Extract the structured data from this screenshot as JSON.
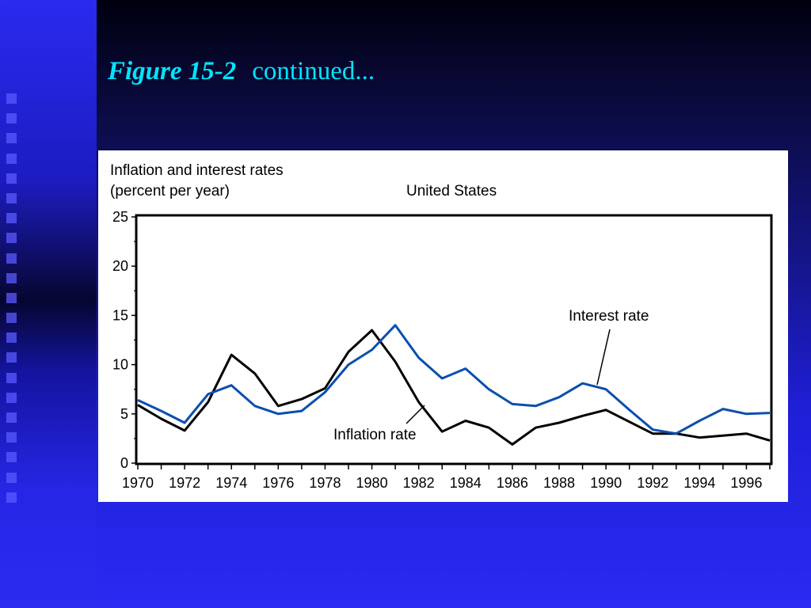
{
  "slide": {
    "title_figure": "Figure 15-2",
    "title_rest": "continued..."
  },
  "chart_data": {
    "type": "line",
    "title": "United States",
    "ylabel_line1": "Inflation and interest rates",
    "ylabel_line2": "(percent per year)",
    "ylim": [
      0,
      25
    ],
    "xlim": [
      1970,
      1997
    ],
    "yticks": [
      "0",
      "5",
      "10",
      "15",
      "20",
      "25"
    ],
    "xticks": [
      "1970",
      "1972",
      "1974",
      "1976",
      "1978",
      "1980",
      "1982",
      "1984",
      "1986",
      "1988",
      "1990",
      "1992",
      "1994",
      "1996"
    ],
    "x": [
      1970,
      1971,
      1972,
      1973,
      1974,
      1975,
      1976,
      1977,
      1978,
      1979,
      1980,
      1981,
      1982,
      1983,
      1984,
      1985,
      1986,
      1987,
      1988,
      1989,
      1990,
      1991,
      1992,
      1993,
      1994,
      1995,
      1996,
      1997
    ],
    "series": [
      {
        "name": "Inflation rate",
        "color": "#000000",
        "values": [
          5.9,
          4.5,
          3.3,
          6.2,
          11.0,
          9.1,
          5.8,
          6.5,
          7.6,
          11.3,
          13.5,
          10.3,
          6.2,
          3.2,
          4.3,
          3.6,
          1.9,
          3.6,
          4.1,
          4.8,
          5.4,
          4.2,
          3.0,
          3.0,
          2.6,
          2.8,
          3.0,
          2.3
        ]
      },
      {
        "name": "Interest rate",
        "color": "#0a4fae",
        "values": [
          6.4,
          5.3,
          4.1,
          7.0,
          7.9,
          5.8,
          5.0,
          5.3,
          7.2,
          10.0,
          11.5,
          14.0,
          10.7,
          8.6,
          9.6,
          7.5,
          6.0,
          5.8,
          6.7,
          8.1,
          7.5,
          5.4,
          3.4,
          3.0,
          4.3,
          5.5,
          5.0,
          5.1
        ]
      }
    ],
    "annotations": [
      {
        "text": "Interest rate",
        "series": "Interest rate"
      },
      {
        "text": "Inflation rate",
        "series": "Inflation rate"
      }
    ],
    "grid": false,
    "legend": "none"
  }
}
